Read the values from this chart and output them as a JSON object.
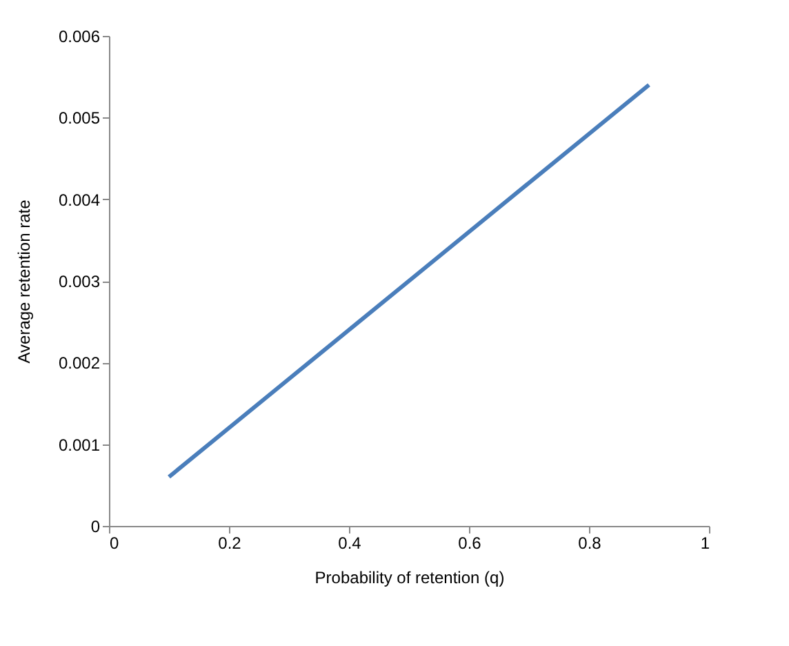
{
  "chart_data": {
    "type": "line",
    "xlabel": "Probability of retention (q)",
    "ylabel": "Average retention rate",
    "x": [
      0.1,
      0.2,
      0.3,
      0.4,
      0.5,
      0.6,
      0.7,
      0.8,
      0.9
    ],
    "series": [
      {
        "color": "#4a7ebb",
        "values": [
          0.0006,
          0.0012,
          0.0018,
          0.0024,
          0.003,
          0.0036,
          0.0042,
          0.0048,
          0.0054
        ]
      }
    ],
    "xlim": [
      0,
      1
    ],
    "xticks": [
      0,
      0.2,
      0.4,
      0.6,
      0.8,
      1
    ],
    "ylim": [
      0,
      0.006
    ],
    "yticks": [
      0,
      0.001,
      0.002,
      0.003,
      0.004,
      0.005,
      0.006
    ],
    "grid": false,
    "marker": "none",
    "line_style": "solid"
  }
}
